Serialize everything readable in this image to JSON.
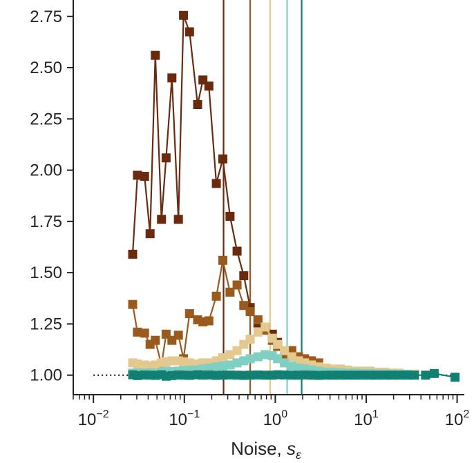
{
  "chart_data": {
    "type": "line",
    "title": "",
    "xlabel": "Noise, ",
    "xlabel_symbol": "s",
    "xlabel_subscript": "ε",
    "ylabel": "",
    "x_scale": "log",
    "xlim": [
      0.006,
      120
    ],
    "ylim": [
      0.925,
      2.83
    ],
    "x_ticks": [
      {
        "value": 0.01,
        "base": "10",
        "exp": "−2"
      },
      {
        "value": 0.1,
        "base": "10",
        "exp": "−1"
      },
      {
        "value": 1,
        "base": "10",
        "exp": "0"
      },
      {
        "value": 10,
        "base": "10",
        "exp": "1"
      },
      {
        "value": 100,
        "base": "10",
        "exp": "2"
      }
    ],
    "y_ticks": [
      {
        "value": 1.0,
        "label": "1.00"
      },
      {
        "value": 1.25,
        "label": "1.25"
      },
      {
        "value": 1.5,
        "label": "1.50"
      },
      {
        "value": 1.75,
        "label": "1.75"
      },
      {
        "value": 2.0,
        "label": "2.00"
      },
      {
        "value": 2.25,
        "label": "2.25"
      },
      {
        "value": 2.5,
        "label": "2.50"
      },
      {
        "value": 2.75,
        "label": "2.75"
      }
    ],
    "reference_line": {
      "y": 1.0,
      "x_range": [
        0.01,
        100
      ],
      "style": "dotted",
      "color": "#000000"
    },
    "vertical_lines": [
      {
        "x": 0.27,
        "color": "#6b2a0e"
      },
      {
        "x": 0.53,
        "color": "#9a5a1c"
      },
      {
        "x": 0.88,
        "color": "#e3c98e"
      },
      {
        "x": 1.35,
        "color": "#7fd0c3"
      },
      {
        "x": 1.95,
        "color": "#127f73"
      }
    ],
    "series": [
      {
        "color": "#6b2a0e",
        "x": [
          0.027,
          0.0305,
          0.0365,
          0.042,
          0.048,
          0.056,
          0.063,
          0.073,
          0.086,
          0.098,
          0.114,
          0.14,
          0.16,
          0.186,
          0.225,
          0.265,
          0.318,
          0.38,
          0.45,
          0.53,
          0.645,
          0.775,
          0.93,
          1.06
        ],
        "y": [
          1.59,
          1.975,
          1.97,
          1.69,
          2.56,
          1.76,
          2.06,
          2.45,
          1.76,
          2.755,
          2.675,
          2.32,
          2.44,
          2.41,
          1.935,
          2.055,
          1.775,
          1.605,
          1.485,
          1.33,
          1.255,
          1.23,
          1.2,
          1.16
        ]
      },
      {
        "color": "#9a5a1c",
        "x": [
          0.027,
          0.0305,
          0.0365,
          0.042,
          0.048,
          0.056,
          0.063,
          0.073,
          0.086,
          0.098,
          0.114,
          0.14,
          0.16,
          0.186,
          0.225,
          0.265,
          0.318,
          0.38,
          0.45,
          0.53,
          0.645,
          0.775,
          0.93,
          1.06,
          1.26,
          1.52,
          1.8,
          2.1,
          2.5,
          3.0
        ],
        "y": [
          1.345,
          1.21,
          1.205,
          1.15,
          1.17,
          1.05,
          1.2,
          1.17,
          1.195,
          1.08,
          1.3,
          1.27,
          1.26,
          1.265,
          1.385,
          1.56,
          1.405,
          1.44,
          1.34,
          1.31,
          1.27,
          1.22,
          1.17,
          1.14,
          1.1,
          1.12,
          1.09,
          1.08,
          1.07,
          1.06
        ]
      },
      {
        "color": "#e3c98e",
        "x": [
          0.027,
          0.0305,
          0.0365,
          0.042,
          0.048,
          0.056,
          0.063,
          0.073,
          0.086,
          0.098,
          0.114,
          0.14,
          0.16,
          0.186,
          0.225,
          0.265,
          0.318,
          0.38,
          0.45,
          0.53,
          0.645,
          0.775,
          0.93,
          1.06,
          1.26,
          1.52,
          1.8,
          2.1,
          2.5,
          3.0,
          3.6,
          4.3,
          5.2,
          6.2,
          7.5,
          9.0,
          11,
          13,
          16,
          19,
          23,
          28,
          34
        ],
        "y": [
          1.06,
          1.055,
          1.05,
          1.045,
          1.05,
          1.06,
          1.065,
          1.07,
          1.07,
          1.065,
          1.06,
          1.055,
          1.06,
          1.06,
          1.07,
          1.085,
          1.1,
          1.12,
          1.15,
          1.175,
          1.21,
          1.235,
          1.18,
          1.15,
          1.12,
          1.09,
          1.07,
          1.06,
          1.05,
          1.04,
          1.035,
          1.03,
          1.03,
          1.025,
          1.02,
          1.02,
          1.02,
          1.015,
          1.015,
          1.01,
          1.01,
          1.005,
          1.005
        ]
      },
      {
        "color": "#7fd0c3",
        "x": [
          0.027,
          0.0305,
          0.0365,
          0.042,
          0.048,
          0.056,
          0.063,
          0.073,
          0.086,
          0.098,
          0.114,
          0.14,
          0.16,
          0.186,
          0.225,
          0.265,
          0.318,
          0.38,
          0.45,
          0.53,
          0.645,
          0.775,
          0.93,
          1.06,
          1.26,
          1.52,
          1.8,
          2.1,
          2.5,
          3.0,
          3.6,
          4.3,
          5.2,
          6.2,
          7.5,
          9.0,
          11,
          13,
          16,
          19,
          23,
          28
        ],
        "y": [
          1.01,
          1.012,
          1.01,
          1.012,
          1.01,
          1.015,
          1.02,
          1.018,
          1.02,
          1.022,
          1.025,
          1.025,
          1.03,
          1.035,
          1.04,
          1.045,
          1.05,
          1.06,
          1.07,
          1.08,
          1.09,
          1.1,
          1.095,
          1.08,
          1.06,
          1.045,
          1.035,
          1.03,
          1.025,
          1.02,
          1.015,
          1.015,
          1.012,
          1.01,
          1.01,
          1.008,
          1.008,
          1.006,
          1.005,
          1.005,
          1.004,
          1.004
        ]
      },
      {
        "color": "#127f73",
        "x": [
          0.027,
          0.0305,
          0.0365,
          0.042,
          0.048,
          0.056,
          0.063,
          0.073,
          0.086,
          0.098,
          0.114,
          0.14,
          0.16,
          0.186,
          0.225,
          0.265,
          0.318,
          0.38,
          0.45,
          0.53,
          0.645,
          0.775,
          0.93,
          1.06,
          1.26,
          1.52,
          1.8,
          2.1,
          2.5,
          3.0,
          3.6,
          4.3,
          5.2,
          6.2,
          7.5,
          9.0,
          11,
          13,
          16,
          19,
          23,
          28,
          34,
          45,
          56,
          95
        ],
        "y": [
          1.002,
          0.998,
          1.001,
          1.0,
          0.999,
          1.002,
          0.995,
          0.998,
          1.001,
          1.0,
          0.999,
          1.002,
          1.0,
          1.001,
          0.999,
          1.0,
          1.001,
          1.0,
          0.999,
          1.0,
          1.001,
          1.0,
          1.0,
          1.002,
          1.001,
          1.0,
          1.0,
          1.001,
          1.0,
          0.999,
          1.0,
          1.0,
          1.0,
          1.0,
          1.0,
          1.0,
          1.0,
          1.0,
          1.0,
          1.0,
          1.0,
          1.0,
          1.0,
          1.0,
          1.008,
          0.99
        ]
      }
    ]
  }
}
